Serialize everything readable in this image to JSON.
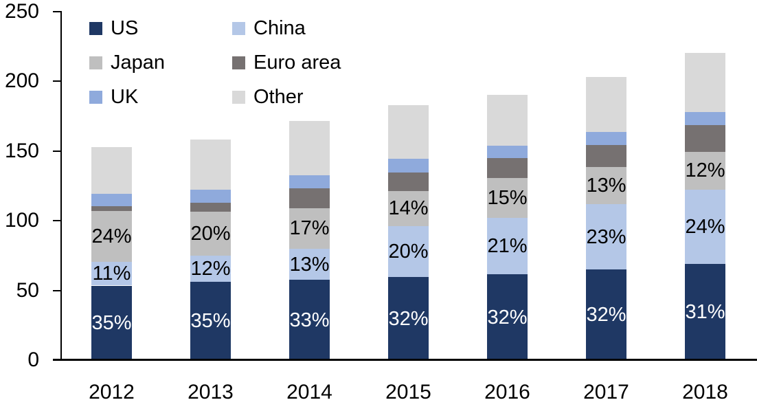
{
  "chart_data": {
    "type": "bar",
    "stacked": true,
    "title": "",
    "xlabel": "",
    "ylabel": "",
    "grid": false,
    "legend_position": "top-left-two-columns",
    "categories": [
      "2012",
      "2013",
      "2014",
      "2015",
      "2016",
      "2017",
      "2018"
    ],
    "y_axis": {
      "min": 0,
      "max": 250,
      "ticks": [
        0,
        50,
        100,
        150,
        200,
        250
      ]
    },
    "series": [
      {
        "name": "US",
        "color": "#1F3864",
        "label_color": "#FFFFFF",
        "values": [
          53.5,
          56,
          57.5,
          59.5,
          61.5,
          65,
          69
        ],
        "labels": [
          "35%",
          "35%",
          "33%",
          "32%",
          "32%",
          "32%",
          "31%"
        ]
      },
      {
        "name": "China",
        "color": "#B4C7E7",
        "label_color": "#000000",
        "values": [
          17,
          19,
          22.5,
          36.5,
          40.5,
          47,
          53.5
        ],
        "labels": [
          "11%",
          "12%",
          "13%",
          "20%",
          "21%",
          "23%",
          "24%"
        ]
      },
      {
        "name": "Japan",
        "color": "#BFBFBF",
        "label_color": "#000000",
        "values": [
          36.5,
          31.5,
          29,
          25.5,
          28.5,
          26.5,
          27
        ],
        "labels": [
          "24%",
          "20%",
          "17%",
          "14%",
          "15%",
          "13%",
          "12%"
        ]
      },
      {
        "name": "Euro area",
        "color": "#767171",
        "label_color": "#000000",
        "values": [
          3.5,
          6.5,
          14.5,
          13,
          14.5,
          16,
          19
        ],
        "labels": [
          null,
          null,
          null,
          null,
          null,
          null,
          null
        ]
      },
      {
        "name": "UK",
        "color": "#8FAADC",
        "label_color": "#000000",
        "values": [
          9,
          9.5,
          9,
          10,
          9,
          9,
          9.5
        ],
        "labels": [
          null,
          null,
          null,
          null,
          null,
          null,
          null
        ]
      },
      {
        "name": "Other",
        "color": "#D9D9D9",
        "label_color": "#000000",
        "values": [
          33.5,
          36,
          39,
          38.5,
          36.5,
          39.5,
          42.5
        ],
        "labels": [
          null,
          null,
          null,
          null,
          null,
          null,
          null
        ]
      }
    ],
    "totals_estimated": [
      153,
      158.5,
      171.5,
      183,
      190.5,
      203,
      220.5
    ],
    "axis_color": "#000000",
    "background_color": "#FFFFFF"
  }
}
